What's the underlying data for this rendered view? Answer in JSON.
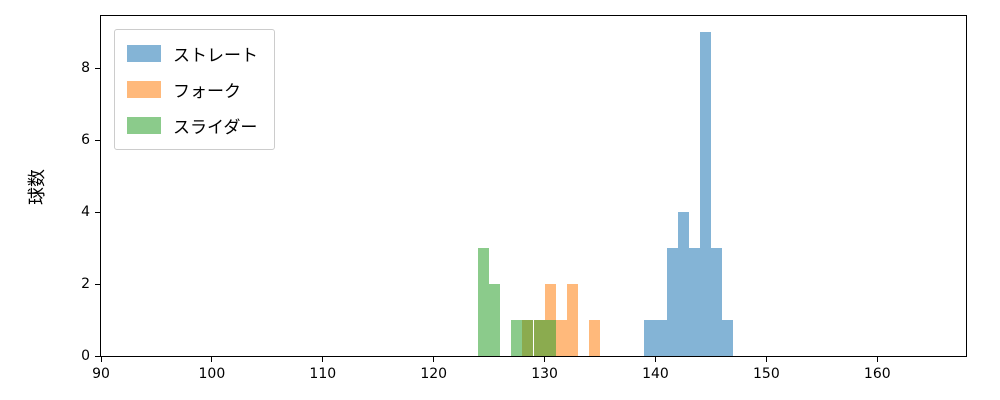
{
  "chart_data": {
    "type": "bar",
    "subtype": "histogram",
    "title": "",
    "xlabel": "",
    "ylabel": "球数",
    "xlim": [
      90,
      168
    ],
    "ylim": [
      0,
      9.45
    ],
    "xticks": [
      90,
      100,
      110,
      120,
      130,
      140,
      150,
      160
    ],
    "yticks": [
      0,
      2,
      4,
      6,
      8
    ],
    "grid": false,
    "legend_position": "upper left",
    "bin_width": 1,
    "series": [
      {
        "name": "ストレート",
        "color": "#1f77b4",
        "alpha": 0.55,
        "bins": [
          {
            "x": 139,
            "count": 1
          },
          {
            "x": 140,
            "count": 1
          },
          {
            "x": 141,
            "count": 3
          },
          {
            "x": 142,
            "count": 4
          },
          {
            "x": 143,
            "count": 3
          },
          {
            "x": 144,
            "count": 9
          },
          {
            "x": 145,
            "count": 3
          },
          {
            "x": 146,
            "count": 1
          }
        ]
      },
      {
        "name": "フォーク",
        "color": "#ff7f0e",
        "alpha": 0.55,
        "bins": [
          {
            "x": 128,
            "count": 1
          },
          {
            "x": 129,
            "count": 1
          },
          {
            "x": 130,
            "count": 2
          },
          {
            "x": 131,
            "count": 1
          },
          {
            "x": 132,
            "count": 2
          },
          {
            "x": 134,
            "count": 1
          }
        ]
      },
      {
        "name": "スライダー",
        "color": "#2ca02c",
        "alpha": 0.55,
        "bins": [
          {
            "x": 124,
            "count": 3
          },
          {
            "x": 125,
            "count": 2
          },
          {
            "x": 127,
            "count": 1
          },
          {
            "x": 128,
            "count": 1
          },
          {
            "x": 129,
            "count": 1
          },
          {
            "x": 130,
            "count": 1
          }
        ]
      }
    ]
  }
}
